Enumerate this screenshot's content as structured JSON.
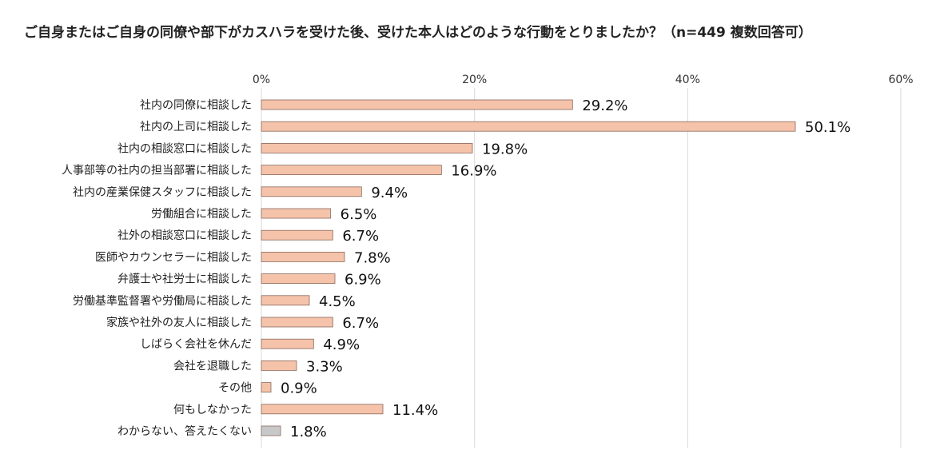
{
  "chart_data": {
    "type": "bar",
    "orientation": "horizontal",
    "title": "ご自身またはご自身の同僚や部下がカスハラを受けた後、受けた本人はどのような行動をとりましたか？（n=449 複数回答可）",
    "xlim": [
      0,
      60
    ],
    "ticks": [
      0,
      20,
      40,
      60
    ],
    "tick_labels": [
      "0%",
      "20%",
      "40%",
      "60%"
    ],
    "grid": true,
    "categories": [
      "社内の同僚に相談した",
      "社内の上司に相談した",
      "社内の相談窓口に相談した",
      "人事部等の社内の担当部署に相談した",
      "社内の産業保健スタッフに相談した",
      "労働組合に相談した",
      "社外の相談窓口に相談した",
      "医師やカウンセラーに相談した",
      "弁護士や社労士に相談した",
      "労働基準監督署や労働局に相談した",
      "家族や社外の友人に相談した",
      "しばらく会社を休んだ",
      "会社を退職した",
      "その他",
      "何もしなかった",
      "わからない、答えたくない"
    ],
    "values": [
      29.2,
      50.1,
      19.8,
      16.9,
      9.4,
      6.5,
      6.7,
      7.8,
      6.9,
      4.5,
      6.7,
      4.9,
      3.3,
      0.9,
      11.4,
      1.8
    ],
    "value_labels": [
      "29.2%",
      "50.1%",
      "19.8%",
      "16.9%",
      "9.4%",
      "6.5%",
      "6.7%",
      "7.8%",
      "6.9%",
      "4.5%",
      "6.7%",
      "4.9%",
      "3.3%",
      "0.9%",
      "11.4%",
      "1.8%"
    ],
    "bar_colors": [
      "#f5c2aa",
      "#f5c2aa",
      "#f5c2aa",
      "#f5c2aa",
      "#f5c2aa",
      "#f5c2aa",
      "#f5c2aa",
      "#f5c2aa",
      "#f5c2aa",
      "#f5c2aa",
      "#f5c2aa",
      "#f5c2aa",
      "#f5c2aa",
      "#f5c2aa",
      "#f5c2aa",
      "#c8c8c8"
    ],
    "bar_stroke": "#8a6a5e",
    "grid_color": "#d9d9d9"
  }
}
